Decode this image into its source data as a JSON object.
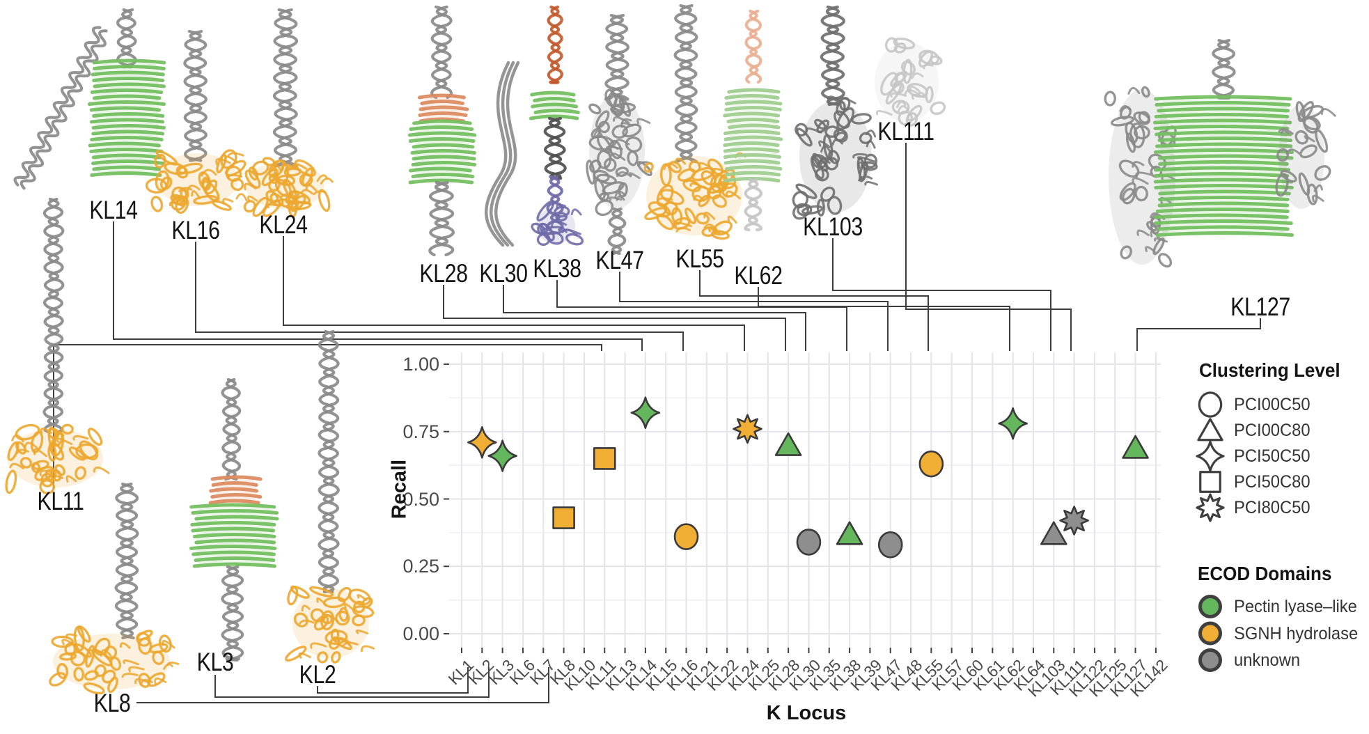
{
  "colors": {
    "green": "#64B75D",
    "orange": "#F1AE34",
    "gray": "#8E8E8E",
    "marker_stroke": "#3A3A3A",
    "leader_line": "#3D3D3D",
    "grid_major": "#E4E4E8",
    "grid_minor": "#EFEFF2",
    "axis_tick": "#3F3F3F",
    "axis_text": "#4A4A4A",
    "title_text": "#141414",
    "legend_icon_stroke": "#3F3F3F",
    "structure_gray": "#8A8A8A",
    "structure_dark": "#6F6F6F",
    "structure_black": "#4F4F4F",
    "structure_green": "#74BF60",
    "structure_palegreen": "#9FCD8F",
    "structure_salmon": "#DD8B61",
    "structure_palesalmon": "#E9AF92",
    "structure_rust": "#C25A2C",
    "structure_purple": "#6F6AA8",
    "structure_palegray": "#C6C6C6",
    "structure_orange": "#ECA72F"
  },
  "axes": {
    "y_title": "Recall",
    "x_title": "K Locus",
    "y_ticks": [
      {
        "label": "1.00",
        "value": 1
      },
      {
        "label": "0.75",
        "value": 0.75
      },
      {
        "label": "0.50",
        "value": 0.5
      },
      {
        "label": "0.25",
        "value": 0.25
      },
      {
        "label": "0.00",
        "value": 0
      }
    ]
  },
  "legend_clustering": {
    "title": "Clustering Level",
    "items": [
      {
        "shape": "circle",
        "label": "PCI00C50"
      },
      {
        "shape": "triangle",
        "label": "PCI00C80"
      },
      {
        "shape": "star4",
        "label": "PCI50C50"
      },
      {
        "shape": "square",
        "label": "PCI50C80"
      },
      {
        "shape": "star8",
        "label": "PCI80C50"
      }
    ]
  },
  "legend_ecod": {
    "title": "ECOD Domains",
    "items": [
      {
        "color_key": "green",
        "label": "Pectin lyase–like"
      },
      {
        "color_key": "orange",
        "label": "SGNH hydrolase"
      },
      {
        "color_key": "gray",
        "label": "unknown"
      }
    ]
  },
  "structures": [
    {
      "label": "KL14"
    },
    {
      "label": "KL16"
    },
    {
      "label": "KL24"
    },
    {
      "label": "KL28"
    },
    {
      "label": "KL30"
    },
    {
      "label": "KL38"
    },
    {
      "label": "KL47"
    },
    {
      "label": "KL55"
    },
    {
      "label": "KL62"
    },
    {
      "label": "KL103"
    },
    {
      "label": "KL111"
    },
    {
      "label": "KL127"
    },
    {
      "label": "KL11"
    },
    {
      "label": "KL8"
    },
    {
      "label": "KL3"
    },
    {
      "label": "KL2"
    }
  ],
  "chart_data": {
    "type": "scatter",
    "title": "",
    "xlabel": "K Locus",
    "ylabel": "Recall",
    "ylim": [
      0,
      1
    ],
    "grid": true,
    "legend_position": "right",
    "y_major_ticks": [
      0,
      0.25,
      0.5,
      0.75,
      1.0
    ],
    "y_minor_ticks": [
      0.125,
      0.375,
      0.625,
      0.875
    ],
    "categories": [
      "KL1",
      "KL2",
      "KL3",
      "KL6",
      "KL7",
      "KL8",
      "KL10",
      "KL11",
      "KL13",
      "KL14",
      "KL15",
      "KL16",
      "KL21",
      "KL22",
      "KL24",
      "KL25",
      "KL28",
      "KL30",
      "KL35",
      "KL38",
      "KL39",
      "KL47",
      "KL48",
      "KL55",
      "KL57",
      "KL60",
      "KL61",
      "KL62",
      "KL64",
      "KL103",
      "KL111",
      "KL122",
      "KL125",
      "KL127",
      "KL142"
    ],
    "points": [
      {
        "locus": "KL2",
        "recall": 0.71,
        "clustering_level": "PCI50C50",
        "ecod_domain": "SGNH hydrolase"
      },
      {
        "locus": "KL3",
        "recall": 0.66,
        "clustering_level": "PCI50C50",
        "ecod_domain": "Pectin lyase–like"
      },
      {
        "locus": "KL8",
        "recall": 0.43,
        "clustering_level": "PCI50C80",
        "ecod_domain": "SGNH hydrolase"
      },
      {
        "locus": "KL11",
        "recall": 0.65,
        "clustering_level": "PCI50C80",
        "ecod_domain": "SGNH hydrolase"
      },
      {
        "locus": "KL14",
        "recall": 0.82,
        "clustering_level": "PCI50C50",
        "ecod_domain": "Pectin lyase–like"
      },
      {
        "locus": "KL16",
        "recall": 0.36,
        "clustering_level": "PCI00C50",
        "ecod_domain": "SGNH hydrolase"
      },
      {
        "locus": "KL24",
        "recall": 0.76,
        "clustering_level": "PCI80C50",
        "ecod_domain": "SGNH hydrolase"
      },
      {
        "locus": "KL28",
        "recall": 0.7,
        "clustering_level": "PCI00C80",
        "ecod_domain": "Pectin lyase–like"
      },
      {
        "locus": "KL30",
        "recall": 0.34,
        "clustering_level": "PCI00C50",
        "ecod_domain": "unknown"
      },
      {
        "locus": "KL38",
        "recall": 0.37,
        "clustering_level": "PCI00C80",
        "ecod_domain": "Pectin lyase–like"
      },
      {
        "locus": "KL47",
        "recall": 0.33,
        "clustering_level": "PCI00C50",
        "ecod_domain": "unknown"
      },
      {
        "locus": "KL55",
        "recall": 0.63,
        "clustering_level": "PCI00C50",
        "ecod_domain": "SGNH hydrolase"
      },
      {
        "locus": "KL62",
        "recall": 0.78,
        "clustering_level": "PCI50C50",
        "ecod_domain": "Pectin lyase–like"
      },
      {
        "locus": "KL103",
        "recall": 0.37,
        "clustering_level": "PCI00C80",
        "ecod_domain": "unknown"
      },
      {
        "locus": "KL111",
        "recall": 0.42,
        "clustering_level": "PCI80C50",
        "ecod_domain": "unknown"
      },
      {
        "locus": "KL127",
        "recall": 0.69,
        "clustering_level": "PCI00C80",
        "ecod_domain": "Pectin lyase–like"
      }
    ]
  }
}
